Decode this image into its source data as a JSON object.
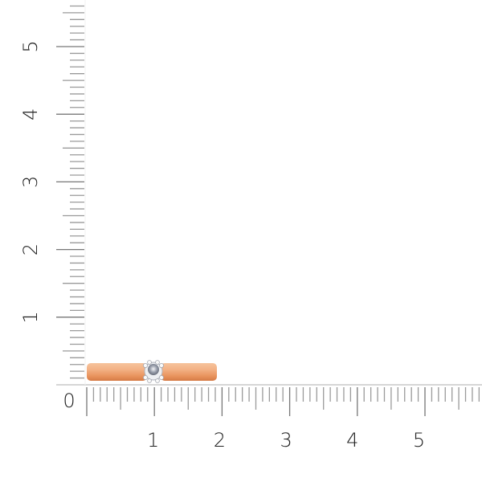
{
  "ruler": {
    "unit_labels_x": [
      "0",
      "1",
      "2",
      "3",
      "4",
      "5"
    ],
    "unit_labels_y": [
      "1",
      "2",
      "3",
      "4",
      "5"
    ],
    "tick_color": "#9a9a9a",
    "axis_color": "#bdbdbd"
  },
  "product": {
    "type": "ring",
    "metal_color": "#f0a878",
    "stone_color": "#c8ccd6"
  }
}
